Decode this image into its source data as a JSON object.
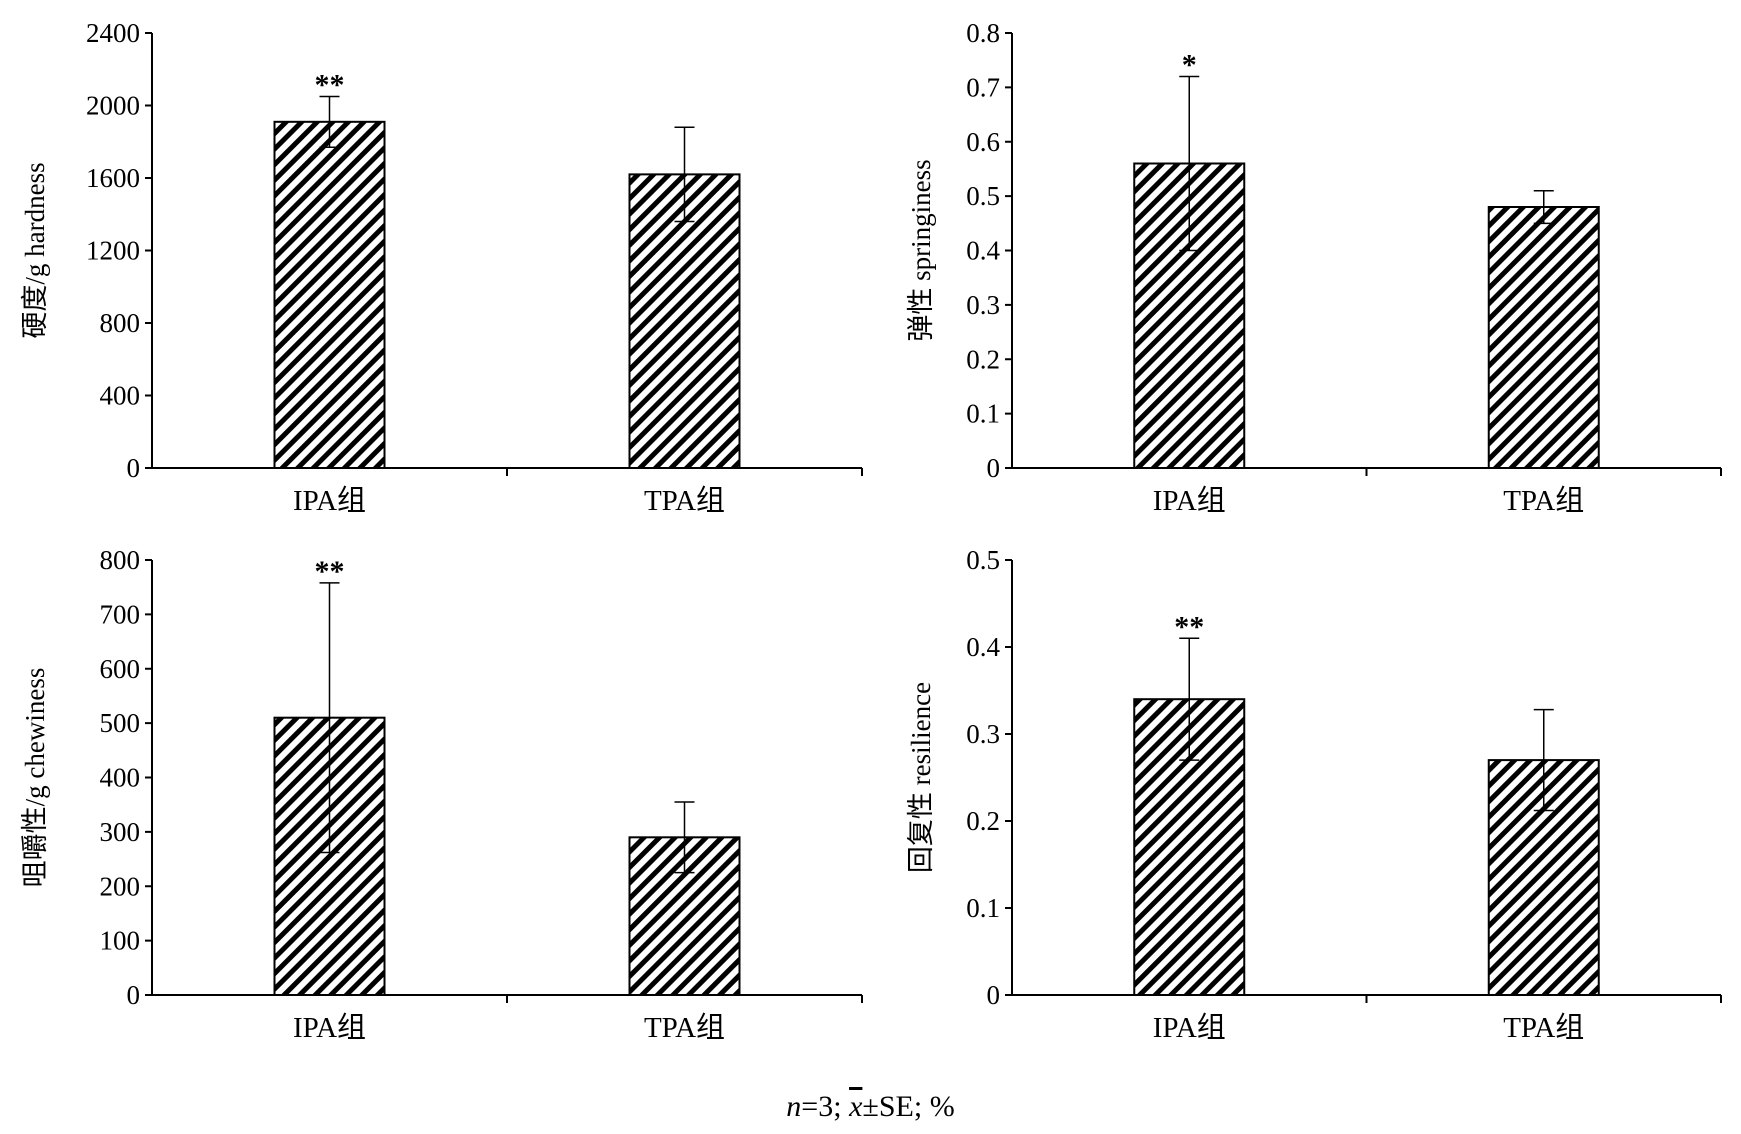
{
  "chart_data": [
    {
      "type": "bar",
      "categories": [
        "IPA组",
        "TPA组"
      ],
      "values": [
        1910,
        1620
      ],
      "errors": [
        140,
        260
      ],
      "significance": [
        "**",
        ""
      ],
      "ylabel": "硬度/g hardness",
      "ylim": [
        0,
        2400
      ],
      "yticks": [
        0,
        400,
        800,
        1200,
        1600,
        2000,
        2400
      ],
      "ytick_labels": [
        "0",
        "400",
        "800",
        "1200",
        "1600",
        "2000",
        "2400"
      ],
      "grid": false,
      "bar_fill": "diagonal-hatch"
    },
    {
      "type": "bar",
      "categories": [
        "IPA组",
        "TPA组"
      ],
      "values": [
        0.56,
        0.48
      ],
      "errors": [
        0.16,
        0.03
      ],
      "significance": [
        "*",
        ""
      ],
      "ylabel": "弹性 springiness",
      "ylim": [
        0,
        0.8
      ],
      "yticks": [
        0,
        0.1,
        0.2,
        0.3,
        0.4,
        0.5,
        0.6,
        0.7,
        0.8
      ],
      "ytick_labels": [
        "0",
        "0.1",
        "0.2",
        "0.3",
        "0.4",
        "0.5",
        "0.6",
        "0.7",
        "0.8"
      ],
      "grid": false,
      "bar_fill": "diagonal-hatch"
    },
    {
      "type": "bar",
      "categories": [
        "IPA组",
        "TPA组"
      ],
      "values": [
        510,
        290
      ],
      "errors": [
        248,
        65
      ],
      "significance": [
        "**",
        ""
      ],
      "ylabel": "咀嚼性/g chewiness",
      "ylim": [
        0,
        800
      ],
      "yticks": [
        0,
        100,
        200,
        300,
        400,
        500,
        600,
        700,
        800
      ],
      "ytick_labels": [
        "0",
        "100",
        "200",
        "300",
        "400",
        "500",
        "600",
        "700",
        "800"
      ],
      "grid": false,
      "bar_fill": "diagonal-hatch"
    },
    {
      "type": "bar",
      "categories": [
        "IPA组",
        "TPA组"
      ],
      "values": [
        0.34,
        0.27
      ],
      "errors": [
        0.07,
        0.058
      ],
      "significance": [
        "**",
        ""
      ],
      "ylabel": "回复性 resilience",
      "ylim": [
        0,
        0.5
      ],
      "yticks": [
        0,
        0.1,
        0.2,
        0.3,
        0.4,
        0.5
      ],
      "ytick_labels": [
        "0",
        "0.1",
        "0.2",
        "0.3",
        "0.4",
        "0.5"
      ],
      "grid": false,
      "bar_fill": "diagonal-hatch"
    }
  ],
  "footnote": {
    "n_symbol": "n",
    "n_value": "=3; ",
    "mean_symbol": "x",
    "rest": "±SE; %"
  }
}
